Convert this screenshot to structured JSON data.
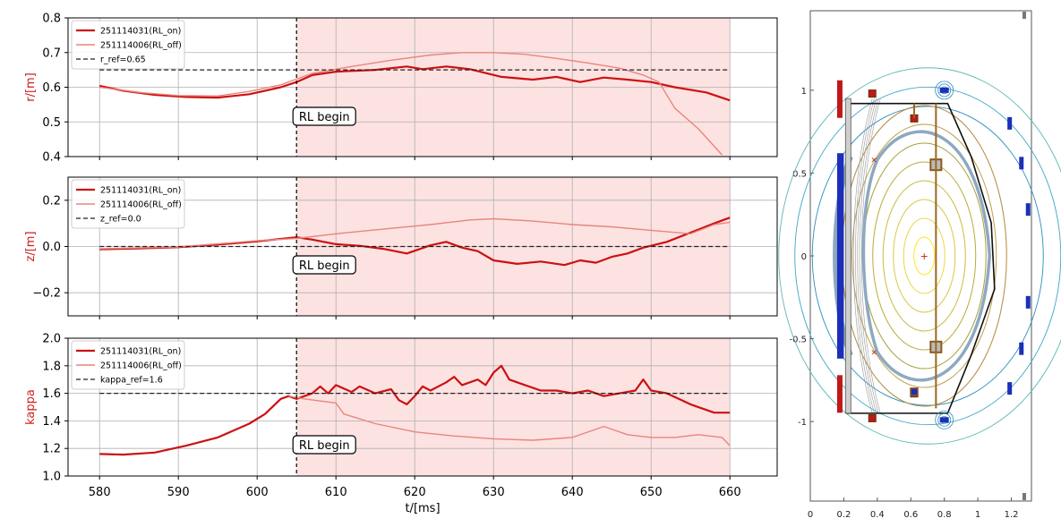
{
  "colors": {
    "on": "#cc1111",
    "off": "#e8867c",
    "ref": "#222222",
    "shade": "#fde2e2",
    "ylabel": "#cc2222",
    "grid": "#b0b0b0"
  },
  "shared": {
    "xlabel": "t/[ms]",
    "xticks": [
      "580",
      "590",
      "600",
      "610",
      "620",
      "630",
      "640",
      "650",
      "660"
    ],
    "rl_time": 605,
    "rl_label": "RL begin"
  },
  "chart_data": [
    {
      "type": "line",
      "ylabel": "r/[m]",
      "xlim": [
        576,
        666
      ],
      "ylim": [
        0.4,
        0.8
      ],
      "yticks": [
        "0.4",
        "0.5",
        "0.6",
        "0.7",
        "0.8"
      ],
      "shade_range": [
        605,
        660
      ],
      "grid": true,
      "legend_position": "top-left",
      "series": [
        {
          "name": "251114031(RL_on)",
          "style": "on",
          "points": [
            [
              580,
              0.604
            ],
            [
              583,
              0.59
            ],
            [
              587,
              0.578
            ],
            [
              591,
              0.572
            ],
            [
              595,
              0.57
            ],
            [
              599,
              0.58
            ],
            [
              603,
              0.6
            ],
            [
              605,
              0.615
            ],
            [
              607,
              0.635
            ],
            [
              610,
              0.645
            ],
            [
              615,
              0.65
            ],
            [
              619,
              0.66
            ],
            [
              621,
              0.652
            ],
            [
              624,
              0.66
            ],
            [
              627,
              0.652
            ],
            [
              631,
              0.63
            ],
            [
              635,
              0.622
            ],
            [
              638,
              0.63
            ],
            [
              641,
              0.615
            ],
            [
              644,
              0.628
            ],
            [
              647,
              0.622
            ],
            [
              650,
              0.615
            ],
            [
              653,
              0.6
            ],
            [
              657,
              0.585
            ],
            [
              660,
              0.562
            ]
          ]
        },
        {
          "name": "251114006(RL_off)",
          "style": "off",
          "points": [
            [
              580,
              0.6
            ],
            [
              585,
              0.585
            ],
            [
              590,
              0.576
            ],
            [
              595,
              0.575
            ],
            [
              599,
              0.588
            ],
            [
              603,
              0.607
            ],
            [
              607,
              0.64
            ],
            [
              612,
              0.66
            ],
            [
              617,
              0.678
            ],
            [
              622,
              0.693
            ],
            [
              626,
              0.7
            ],
            [
              630,
              0.7
            ],
            [
              634,
              0.695
            ],
            [
              638,
              0.683
            ],
            [
              642,
              0.67
            ],
            [
              646,
              0.655
            ],
            [
              649,
              0.635
            ],
            [
              651,
              0.615
            ],
            [
              653,
              0.54
            ],
            [
              656,
              0.48
            ],
            [
              658,
              0.43
            ],
            [
              659,
              0.405
            ]
          ]
        },
        {
          "name": "r_ref=0.65",
          "style": "ref",
          "points": [
            [
              580,
              0.65
            ],
            [
              660,
              0.65
            ]
          ]
        }
      ]
    },
    {
      "type": "line",
      "ylabel": "z/[m]",
      "xlim": [
        576,
        666
      ],
      "ylim": [
        -0.3,
        0.3
      ],
      "yticks": [
        "−0.2",
        "0.0",
        "0.2"
      ],
      "ytick_values": [
        -0.2,
        0.0,
        0.2
      ],
      "shade_range": [
        605,
        660
      ],
      "grid": true,
      "legend_position": "top-left",
      "series": [
        {
          "name": "251114031(RL_on)",
          "style": "on",
          "points": [
            [
              580,
              -0.012
            ],
            [
              585,
              -0.008
            ],
            [
              590,
              -0.003
            ],
            [
              595,
              0.008
            ],
            [
              600,
              0.022
            ],
            [
              603,
              0.033
            ],
            [
              605,
              0.04
            ],
            [
              607,
              0.03
            ],
            [
              610,
              0.01
            ],
            [
              613,
              0.003
            ],
            [
              616,
              -0.01
            ],
            [
              619,
              -0.03
            ],
            [
              622,
              0.005
            ],
            [
              624,
              0.02
            ],
            [
              626,
              -0.005
            ],
            [
              628,
              -0.02
            ],
            [
              630,
              -0.06
            ],
            [
              633,
              -0.075
            ],
            [
              636,
              -0.065
            ],
            [
              639,
              -0.08
            ],
            [
              641,
              -0.06
            ],
            [
              643,
              -0.07
            ],
            [
              645,
              -0.045
            ],
            [
              647,
              -0.03
            ],
            [
              649,
              -0.005
            ],
            [
              652,
              0.02
            ],
            [
              655,
              0.06
            ],
            [
              658,
              0.1
            ],
            [
              660,
              0.125
            ]
          ]
        },
        {
          "name": "251114006(RL_off)",
          "style": "off",
          "points": [
            [
              580,
              -0.01
            ],
            [
              590,
              -0.002
            ],
            [
              600,
              0.025
            ],
            [
              605,
              0.035
            ],
            [
              610,
              0.055
            ],
            [
              616,
              0.075
            ],
            [
              622,
              0.095
            ],
            [
              627,
              0.115
            ],
            [
              630,
              0.12
            ],
            [
              635,
              0.11
            ],
            [
              640,
              0.095
            ],
            [
              645,
              0.085
            ],
            [
              650,
              0.07
            ],
            [
              655,
              0.055
            ],
            [
              658,
              0.095
            ],
            [
              660,
              0.105
            ]
          ]
        },
        {
          "name": "z_ref=0.0",
          "style": "ref",
          "points": [
            [
              580,
              0.0
            ],
            [
              660,
              0.0
            ]
          ]
        }
      ]
    },
    {
      "type": "line",
      "ylabel": "kappa",
      "xlim": [
        576,
        666
      ],
      "ylim": [
        1.0,
        2.0
      ],
      "yticks": [
        "1.0",
        "1.2",
        "1.4",
        "1.6",
        "1.8",
        "2.0"
      ],
      "shade_range": [
        605,
        660
      ],
      "grid": true,
      "legend_position": "top-left",
      "series": [
        {
          "name": "251114031(RL_on)",
          "style": "on",
          "points": [
            [
              580,
              1.16
            ],
            [
              583,
              1.155
            ],
            [
              587,
              1.17
            ],
            [
              591,
              1.22
            ],
            [
              595,
              1.28
            ],
            [
              599,
              1.38
            ],
            [
              601,
              1.45
            ],
            [
              603,
              1.56
            ],
            [
              604,
              1.58
            ],
            [
              605,
              1.56
            ],
            [
              607,
              1.6
            ],
            [
              608,
              1.65
            ],
            [
              609,
              1.6
            ],
            [
              610,
              1.66
            ],
            [
              612,
              1.61
            ],
            [
              613,
              1.65
            ],
            [
              615,
              1.6
            ],
            [
              617,
              1.63
            ],
            [
              618,
              1.55
            ],
            [
              619,
              1.52
            ],
            [
              620,
              1.58
            ],
            [
              621,
              1.65
            ],
            [
              622,
              1.62
            ],
            [
              624,
              1.68
            ],
            [
              625,
              1.72
            ],
            [
              626,
              1.66
            ],
            [
              628,
              1.7
            ],
            [
              629,
              1.66
            ],
            [
              630,
              1.75
            ],
            [
              631,
              1.8
            ],
            [
              632,
              1.7
            ],
            [
              634,
              1.66
            ],
            [
              636,
              1.62
            ],
            [
              638,
              1.62
            ],
            [
              640,
              1.6
            ],
            [
              642,
              1.62
            ],
            [
              644,
              1.58
            ],
            [
              646,
              1.6
            ],
            [
              648,
              1.62
            ],
            [
              649,
              1.7
            ],
            [
              650,
              1.62
            ],
            [
              652,
              1.6
            ],
            [
              655,
              1.52
            ],
            [
              658,
              1.46
            ],
            [
              660,
              1.46
            ]
          ]
        },
        {
          "name": "251114006(RL_off)",
          "style": "off",
          "points": [
            [
              604,
              1.58
            ],
            [
              606,
              1.56
            ],
            [
              610,
              1.53
            ],
            [
              611,
              1.45
            ],
            [
              615,
              1.38
            ],
            [
              620,
              1.32
            ],
            [
              625,
              1.29
            ],
            [
              630,
              1.27
            ],
            [
              635,
              1.26
            ],
            [
              640,
              1.28
            ],
            [
              644,
              1.36
            ],
            [
              647,
              1.3
            ],
            [
              650,
              1.28
            ],
            [
              653,
              1.28
            ],
            [
              656,
              1.3
            ],
            [
              659,
              1.28
            ],
            [
              660,
              1.22
            ]
          ]
        },
        {
          "name": "kappa_ref=1.6",
          "style": "ref",
          "points": [
            [
              580,
              1.6
            ],
            [
              660,
              1.6
            ]
          ]
        }
      ]
    },
    {
      "type": "diagram",
      "xticks": [
        "0",
        "0.2",
        "0.4",
        "0.6",
        "0.8",
        "1",
        "1.2"
      ],
      "xtick_values": [
        0,
        0.2,
        0.4,
        0.6,
        0.8,
        1.0,
        1.2
      ],
      "yticks": [
        "1",
        "0.5",
        "0",
        "-0.5",
        "-1"
      ],
      "ytick_values": [
        1,
        0.5,
        0,
        -0.5,
        -1
      ],
      "xlim": [
        0,
        1.32
      ],
      "ylim": [
        -1.48,
        1.48
      ],
      "magnetic_axis": [
        0.68,
        0.0
      ],
      "x_points": [
        [
          0.38,
          0.58
        ],
        [
          0.38,
          -0.58
        ]
      ]
    }
  ]
}
